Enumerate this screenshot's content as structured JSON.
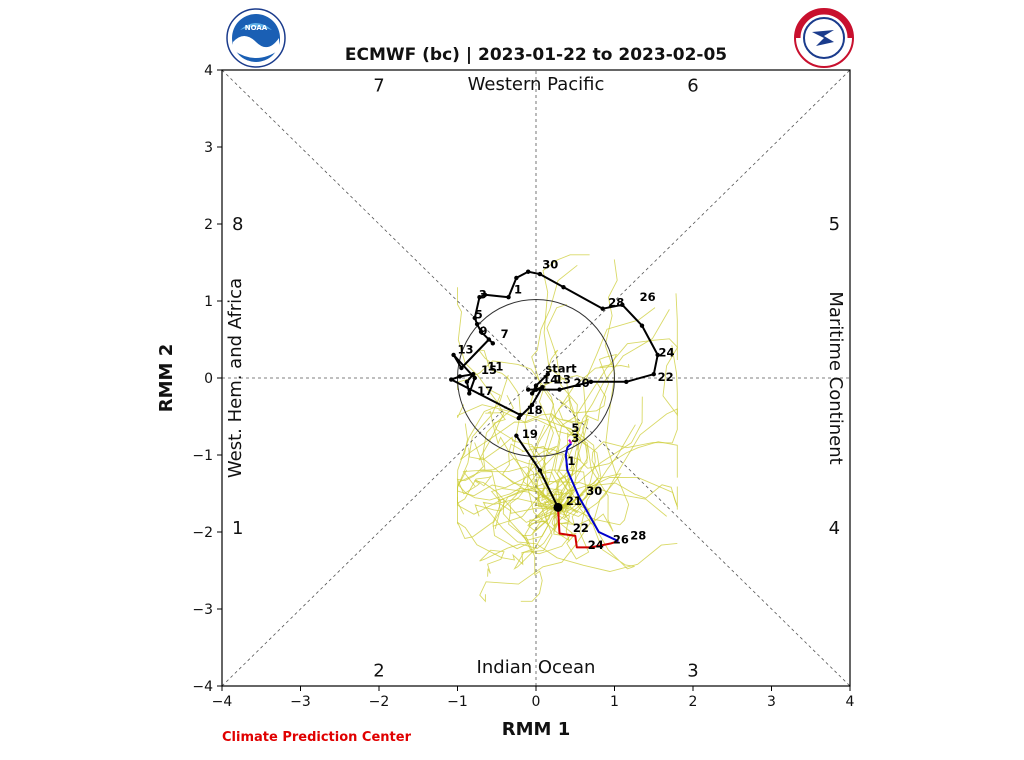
{
  "chart_data": {
    "type": "line",
    "title": "ECMWF (bc) | 2023-01-22 to 2023-02-05",
    "xlabel": "RMM 1",
    "ylabel": "RMM 2",
    "xlim": [
      -4,
      4
    ],
    "ylim": [
      -4,
      4
    ],
    "xticks": [
      "−4",
      "−3",
      "−2",
      "−1",
      "0",
      "1",
      "2",
      "3",
      "4"
    ],
    "yticks": [
      "−4",
      "−3",
      "−2",
      "−1",
      "0",
      "1",
      "2",
      "3",
      "4"
    ],
    "phase_numbers": [
      {
        "label": "1",
        "x": -3.8,
        "y": -1.95
      },
      {
        "label": "2",
        "x": -2.0,
        "y": -3.8
      },
      {
        "label": "3",
        "x": 2.0,
        "y": -3.8
      },
      {
        "label": "4",
        "x": 3.8,
        "y": -1.95
      },
      {
        "label": "5",
        "x": 3.8,
        "y": 2.0
      },
      {
        "label": "6",
        "x": 2.0,
        "y": 3.8
      },
      {
        "label": "7",
        "x": -2.0,
        "y": 3.8
      },
      {
        "label": "8",
        "x": -3.8,
        "y": 2.0
      }
    ],
    "regions": {
      "top": "Western Pacific",
      "bottom": "Indian Ocean",
      "left": "West. Hem. and Africa",
      "right": "Maritime Continent"
    },
    "start_label": "start",
    "observed": {
      "color": "#000000",
      "points": [
        [
          0.15,
          0.05
        ],
        [
          0.0,
          -0.1
        ],
        [
          -0.05,
          -0.2
        ],
        [
          0.0,
          -0.15
        ],
        [
          0.08,
          -0.12
        ],
        [
          -0.05,
          -0.35
        ],
        [
          -0.22,
          -0.52
        ],
        [
          -0.2,
          -0.48
        ],
        [
          -1.08,
          -0.02
        ],
        [
          -0.97,
          0.02
        ],
        [
          -0.8,
          0.05
        ],
        [
          -0.88,
          -0.05
        ],
        [
          -0.85,
          -0.2
        ],
        [
          -0.78,
          0.0
        ],
        [
          -1.05,
          0.3
        ],
        [
          -0.95,
          0.13
        ],
        [
          -0.6,
          0.5
        ],
        [
          -0.55,
          0.45
        ],
        [
          -0.7,
          0.6
        ],
        [
          -0.75,
          0.7
        ],
        [
          -0.78,
          0.78
        ],
        [
          -0.72,
          1.05
        ],
        [
          -0.65,
          1.08
        ],
        [
          -0.35,
          1.05
        ],
        [
          -0.25,
          1.3
        ],
        [
          -0.1,
          1.38
        ],
        [
          0.05,
          1.35
        ],
        [
          0.35,
          1.18
        ],
        [
          0.85,
          0.9
        ],
        [
          1.1,
          0.95
        ],
        [
          1.35,
          0.68
        ],
        [
          1.55,
          0.3
        ],
        [
          1.5,
          0.05
        ],
        [
          1.15,
          -0.05
        ],
        [
          0.7,
          -0.05
        ],
        [
          0.3,
          -0.15
        ],
        [
          0.0,
          -0.15
        ],
        [
          -0.1,
          -0.15
        ]
      ]
    },
    "observed_tail": {
      "color": "#000000",
      "points": [
        [
          -0.25,
          -0.75
        ],
        [
          0.05,
          -1.2
        ],
        [
          0.28,
          -1.68
        ]
      ]
    },
    "forecast_segments": [
      {
        "color": "#d00000",
        "points": [
          [
            0.28,
            -1.68
          ],
          [
            0.3,
            -2.02
          ],
          [
            0.5,
            -2.05
          ],
          [
            0.52,
            -2.2
          ],
          [
            0.7,
            -2.2
          ],
          [
            0.95,
            -2.15
          ],
          [
            1.05,
            -2.12
          ]
        ]
      },
      {
        "color": "#0000cc",
        "points": [
          [
            1.05,
            -2.12
          ],
          [
            0.8,
            -2.0
          ],
          [
            0.55,
            -1.55
          ],
          [
            0.4,
            -1.2
          ],
          [
            0.38,
            -1.0
          ],
          [
            0.4,
            -0.9
          ],
          [
            0.45,
            -0.85
          ]
        ]
      },
      {
        "color": "#cc00cc",
        "points": [
          [
            0.45,
            -0.85
          ],
          [
            0.42,
            -0.8
          ]
        ]
      }
    ],
    "observed_day_labels": [
      {
        "label": "30",
        "x": 0.08,
        "y": 1.42
      },
      {
        "label": "1",
        "x": -0.28,
        "y": 1.1
      },
      {
        "label": "3",
        "x": -0.73,
        "y": 1.03
      },
      {
        "label": "5",
        "x": -0.78,
        "y": 0.77
      },
      {
        "label": "9",
        "x": -0.72,
        "y": 0.56
      },
      {
        "label": "7",
        "x": -0.45,
        "y": 0.52
      },
      {
        "label": "13",
        "x": -1.0,
        "y": 0.32
      },
      {
        "label": "11",
        "x": -0.62,
        "y": 0.1
      },
      {
        "label": "15",
        "x": -0.7,
        "y": 0.05
      },
      {
        "label": "17",
        "x": -0.75,
        "y": -0.22
      },
      {
        "label": "14",
        "x": 0.08,
        "y": -0.07
      },
      {
        "label": "13",
        "x": 0.24,
        "y": -0.07
      },
      {
        "label": "20",
        "x": 0.48,
        "y": -0.12
      },
      {
        "label": "18",
        "x": -0.12,
        "y": -0.47
      },
      {
        "label": "19",
        "x": -0.18,
        "y": -0.78
      },
      {
        "label": "28",
        "x": 0.92,
        "y": 0.93
      },
      {
        "label": "26",
        "x": 1.32,
        "y": 1.0
      },
      {
        "label": "24",
        "x": 1.56,
        "y": 0.28
      },
      {
        "label": "22",
        "x": 1.55,
        "y": -0.04
      }
    ],
    "forecast_day_labels": [
      {
        "label": "5",
        "x": 0.45,
        "y": -0.7
      },
      {
        "label": "3",
        "x": 0.45,
        "y": -0.83
      },
      {
        "label": "1",
        "x": 0.4,
        "y": -1.13
      },
      {
        "label": "30",
        "x": 0.64,
        "y": -1.52
      },
      {
        "label": "21",
        "x": 0.38,
        "y": -1.65
      },
      {
        "label": "22",
        "x": 0.47,
        "y": -2.0
      },
      {
        "label": "24",
        "x": 0.66,
        "y": -2.22
      },
      {
        "label": "26",
        "x": 0.98,
        "y": -2.15
      },
      {
        "label": "28",
        "x": 1.2,
        "y": -2.1
      }
    ]
  },
  "footer": {
    "credit": "Climate Prediction Center"
  },
  "logos": {
    "noaa_text": "NOAA",
    "nws_text": "NATIONAL WEATHER SERVICE"
  }
}
